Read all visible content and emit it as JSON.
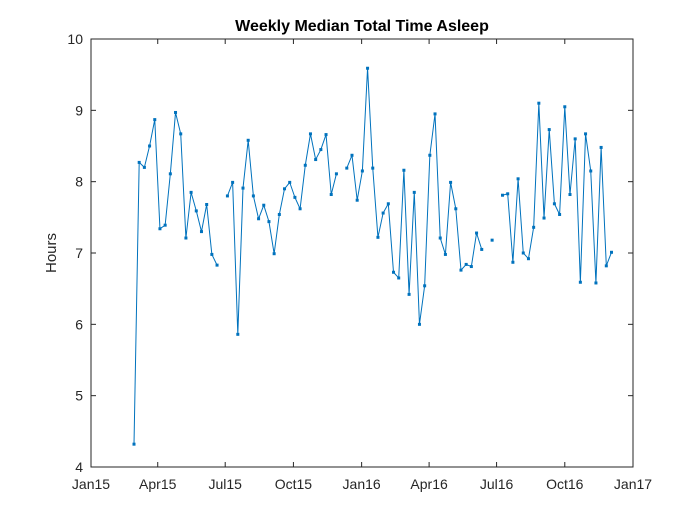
{
  "chart_data": {
    "type": "line",
    "title": "Weekly Median Total Time Asleep",
    "xlabel": "",
    "ylabel": "Hours",
    "ylim": [
      4,
      10
    ],
    "xlim": [
      "2015-01-01",
      "2017-01-01"
    ],
    "grid": false,
    "x_ticks": [
      {
        "date": "2015-01-01",
        "label": "Jan15"
      },
      {
        "date": "2015-04-01",
        "label": "Apr15"
      },
      {
        "date": "2015-07-01",
        "label": "Jul15"
      },
      {
        "date": "2015-10-01",
        "label": "Oct15"
      },
      {
        "date": "2016-01-01",
        "label": "Jan16"
      },
      {
        "date": "2016-04-01",
        "label": "Apr16"
      },
      {
        "date": "2016-07-01",
        "label": "Jul16"
      },
      {
        "date": "2016-10-01",
        "label": "Oct16"
      },
      {
        "date": "2017-01-01",
        "label": "Jan17"
      }
    ],
    "y_ticks": [
      4,
      5,
      6,
      7,
      8,
      9,
      10
    ],
    "color": "#0072BD",
    "series": [
      {
        "points": [
          {
            "x": "2015-02-28",
            "y": 4.32
          },
          {
            "x": "2015-03-07",
            "y": 8.27
          },
          {
            "x": "2015-03-14",
            "y": 8.2
          },
          {
            "x": "2015-03-21",
            "y": 8.5
          },
          {
            "x": "2015-03-28",
            "y": 8.87
          },
          {
            "x": "2015-04-04",
            "y": 7.34
          },
          {
            "x": "2015-04-11",
            "y": 7.39
          },
          {
            "x": "2015-04-18",
            "y": 8.11
          },
          {
            "x": "2015-04-25",
            "y": 8.97
          },
          {
            "x": "2015-05-02",
            "y": 8.67
          },
          {
            "x": "2015-05-09",
            "y": 7.21
          },
          {
            "x": "2015-05-16",
            "y": 7.85
          },
          {
            "x": "2015-05-23",
            "y": 7.59
          },
          {
            "x": "2015-05-30",
            "y": 7.3
          },
          {
            "x": "2015-06-06",
            "y": 7.68
          },
          {
            "x": "2015-06-13",
            "y": 6.98
          },
          {
            "x": "2015-06-20",
            "y": 6.83
          },
          {
            "x": "2015-06-27",
            "y": null
          },
          {
            "x": "2015-07-04",
            "y": 7.8
          },
          {
            "x": "2015-07-11",
            "y": 7.99
          },
          {
            "x": "2015-07-18",
            "y": 5.86
          },
          {
            "x": "2015-07-25",
            "y": 7.91
          },
          {
            "x": "2015-08-01",
            "y": 8.58
          },
          {
            "x": "2015-08-08",
            "y": 7.8
          },
          {
            "x": "2015-08-15",
            "y": 7.48
          },
          {
            "x": "2015-08-22",
            "y": 7.67
          },
          {
            "x": "2015-08-29",
            "y": 7.44
          },
          {
            "x": "2015-09-05",
            "y": 6.99
          },
          {
            "x": "2015-09-12",
            "y": 7.54
          },
          {
            "x": "2015-09-19",
            "y": 7.9
          },
          {
            "x": "2015-09-26",
            "y": 7.99
          },
          {
            "x": "2015-10-03",
            "y": 7.78
          },
          {
            "x": "2015-10-10",
            "y": 7.62
          },
          {
            "x": "2015-10-17",
            "y": 8.23
          },
          {
            "x": "2015-10-24",
            "y": 8.67
          },
          {
            "x": "2015-10-31",
            "y": 8.31
          },
          {
            "x": "2015-11-07",
            "y": 8.45
          },
          {
            "x": "2015-11-14",
            "y": 8.66
          },
          {
            "x": "2015-11-21",
            "y": 7.82
          },
          {
            "x": "2015-11-28",
            "y": 8.11
          },
          {
            "x": "2015-12-05",
            "y": null
          },
          {
            "x": "2015-12-12",
            "y": 8.19
          },
          {
            "x": "2015-12-19",
            "y": 8.37
          },
          {
            "x": "2015-12-26",
            "y": 7.74
          },
          {
            "x": "2016-01-02",
            "y": 8.15
          },
          {
            "x": "2016-01-09",
            "y": 9.59
          },
          {
            "x": "2016-01-16",
            "y": 8.19
          },
          {
            "x": "2016-01-23",
            "y": 7.22
          },
          {
            "x": "2016-01-30",
            "y": 7.56
          },
          {
            "x": "2016-02-06",
            "y": 7.69
          },
          {
            "x": "2016-02-13",
            "y": 6.73
          },
          {
            "x": "2016-02-20",
            "y": 6.65
          },
          {
            "x": "2016-02-27",
            "y": 8.16
          },
          {
            "x": "2016-03-05",
            "y": 6.42
          },
          {
            "x": "2016-03-12",
            "y": 7.85
          },
          {
            "x": "2016-03-19",
            "y": 6.0
          },
          {
            "x": "2016-03-26",
            "y": 6.54
          },
          {
            "x": "2016-04-02",
            "y": 8.37
          },
          {
            "x": "2016-04-09",
            "y": 8.95
          },
          {
            "x": "2016-04-16",
            "y": 7.21
          },
          {
            "x": "2016-04-23",
            "y": 6.98
          },
          {
            "x": "2016-04-30",
            "y": 7.99
          },
          {
            "x": "2016-05-07",
            "y": 7.62
          },
          {
            "x": "2016-05-14",
            "y": 6.76
          },
          {
            "x": "2016-05-21",
            "y": 6.84
          },
          {
            "x": "2016-05-28",
            "y": 6.81
          },
          {
            "x": "2016-06-04",
            "y": 7.28
          },
          {
            "x": "2016-06-11",
            "y": 7.05
          },
          {
            "x": "2016-06-18",
            "y": null
          },
          {
            "x": "2016-06-25",
            "y": 7.18
          },
          {
            "x": "2016-07-02",
            "y": null
          },
          {
            "x": "2016-07-09",
            "y": 7.81
          },
          {
            "x": "2016-07-16",
            "y": 7.83
          },
          {
            "x": "2016-07-23",
            "y": 6.87
          },
          {
            "x": "2016-07-30",
            "y": 8.04
          },
          {
            "x": "2016-08-06",
            "y": 7.0
          },
          {
            "x": "2016-08-13",
            "y": 6.92
          },
          {
            "x": "2016-08-20",
            "y": 7.36
          },
          {
            "x": "2016-08-27",
            "y": 9.1
          },
          {
            "x": "2016-09-03",
            "y": 7.49
          },
          {
            "x": "2016-09-10",
            "y": 8.73
          },
          {
            "x": "2016-09-17",
            "y": 7.69
          },
          {
            "x": "2016-09-24",
            "y": 7.54
          },
          {
            "x": "2016-10-01",
            "y": 9.05
          },
          {
            "x": "2016-10-08",
            "y": 7.82
          },
          {
            "x": "2016-10-15",
            "y": 8.6
          },
          {
            "x": "2016-10-22",
            "y": 6.59
          },
          {
            "x": "2016-10-29",
            "y": 8.67
          },
          {
            "x": "2016-11-05",
            "y": 8.15
          },
          {
            "x": "2016-11-12",
            "y": 6.58
          },
          {
            "x": "2016-11-19",
            "y": 8.48
          },
          {
            "x": "2016-11-26",
            "y": 6.82
          },
          {
            "x": "2016-12-03",
            "y": 7.01
          }
        ]
      }
    ]
  }
}
